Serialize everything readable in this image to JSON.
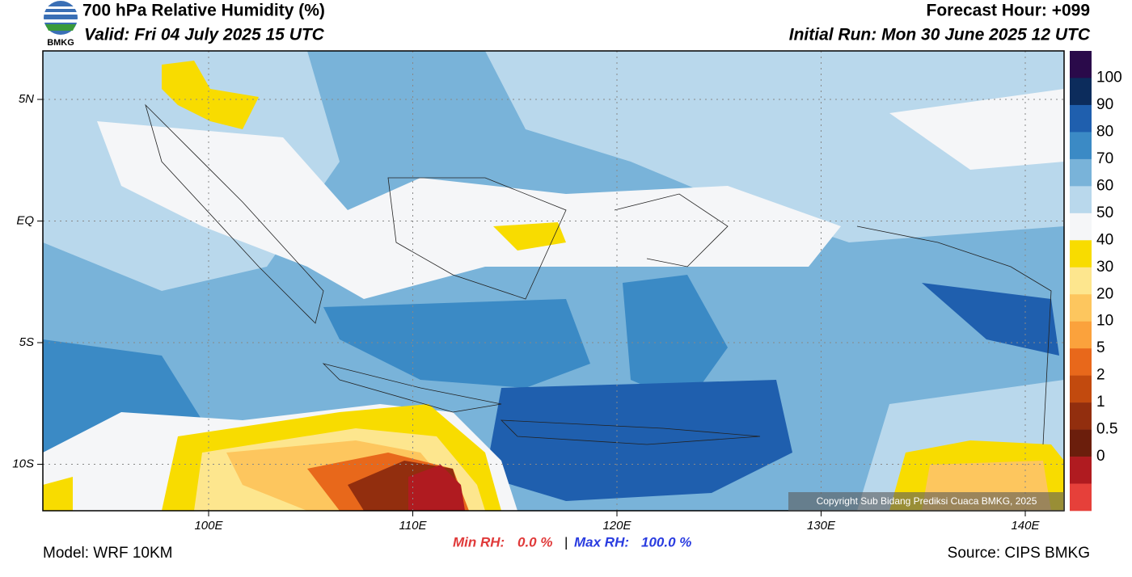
{
  "header": {
    "logo_text": "BMKG",
    "title": "700 hPa Relative Humidity (%)",
    "valid": "Valid: Fri 04 July 2025 15 UTC",
    "forecast_hour": "Forecast Hour: +099",
    "initial_run": "Initial Run: Mon 30 June 2025 12 UTC"
  },
  "map": {
    "lat_labels": [
      "5N",
      "EQ",
      "5S",
      "10S"
    ],
    "lon_labels": [
      "100E",
      "110E",
      "120E",
      "130E",
      "140E"
    ],
    "copyright": "Copyright Sub Bidang Prediksi Cuaca BMKG, 2025"
  },
  "colorbar": {
    "labels": [
      "100",
      "90",
      "80",
      "70",
      "60",
      "50",
      "40",
      "30",
      "20",
      "10",
      "5",
      "2",
      "1",
      "0.5",
      "0"
    ],
    "colors": [
      "#2a0a4a",
      "#0c2c5c",
      "#1f5fae",
      "#3b8ac5",
      "#79b3d9",
      "#b9d8ec",
      "#f5f6f8",
      "#f8dc00",
      "#fde68e",
      "#fdc65e",
      "#fba23c",
      "#e8681b",
      "#c24a0e",
      "#922e0e",
      "#6b1e0c",
      "#b01b20",
      "#e6403a"
    ]
  },
  "footer": {
    "model": "Model: WRF 10KM",
    "min_label": "Min RH:",
    "min_value": "0.0 %",
    "separator": "|",
    "max_label": "Max RH:",
    "max_value": "100.0 %",
    "source": "Source: CIPS BMKG"
  }
}
